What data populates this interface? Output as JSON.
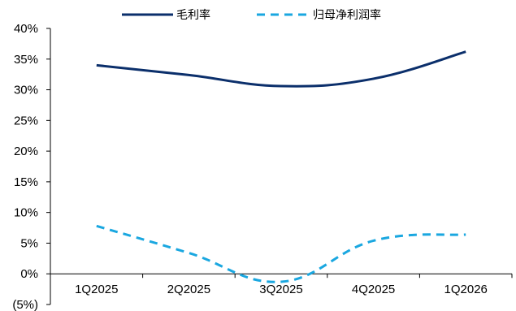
{
  "chart_data": {
    "type": "line",
    "categories": [
      "1Q2025",
      "2Q2025",
      "3Q2025",
      "4Q2025",
      "1Q2026"
    ],
    "ylim": [
      -5,
      40
    ],
    "yticks": [
      -5,
      0,
      5,
      10,
      15,
      20,
      25,
      30,
      35,
      40
    ],
    "ytick_labels": [
      "(5%)",
      "0%",
      "5%",
      "10%",
      "15%",
      "20%",
      "25%",
      "30%",
      "35%",
      "40%"
    ],
    "grid": false,
    "legend_position": "top",
    "series": [
      {
        "name": "毛利率",
        "values": [
          34.0,
          32.4,
          30.6,
          31.8,
          36.2
        ],
        "color": "#0b2f6b",
        "style": "solid"
      },
      {
        "name": "归母净利润率",
        "values": [
          7.8,
          3.4,
          -1.3,
          5.4,
          6.4
        ],
        "color": "#1aa7e0",
        "style": "dashed"
      }
    ]
  }
}
